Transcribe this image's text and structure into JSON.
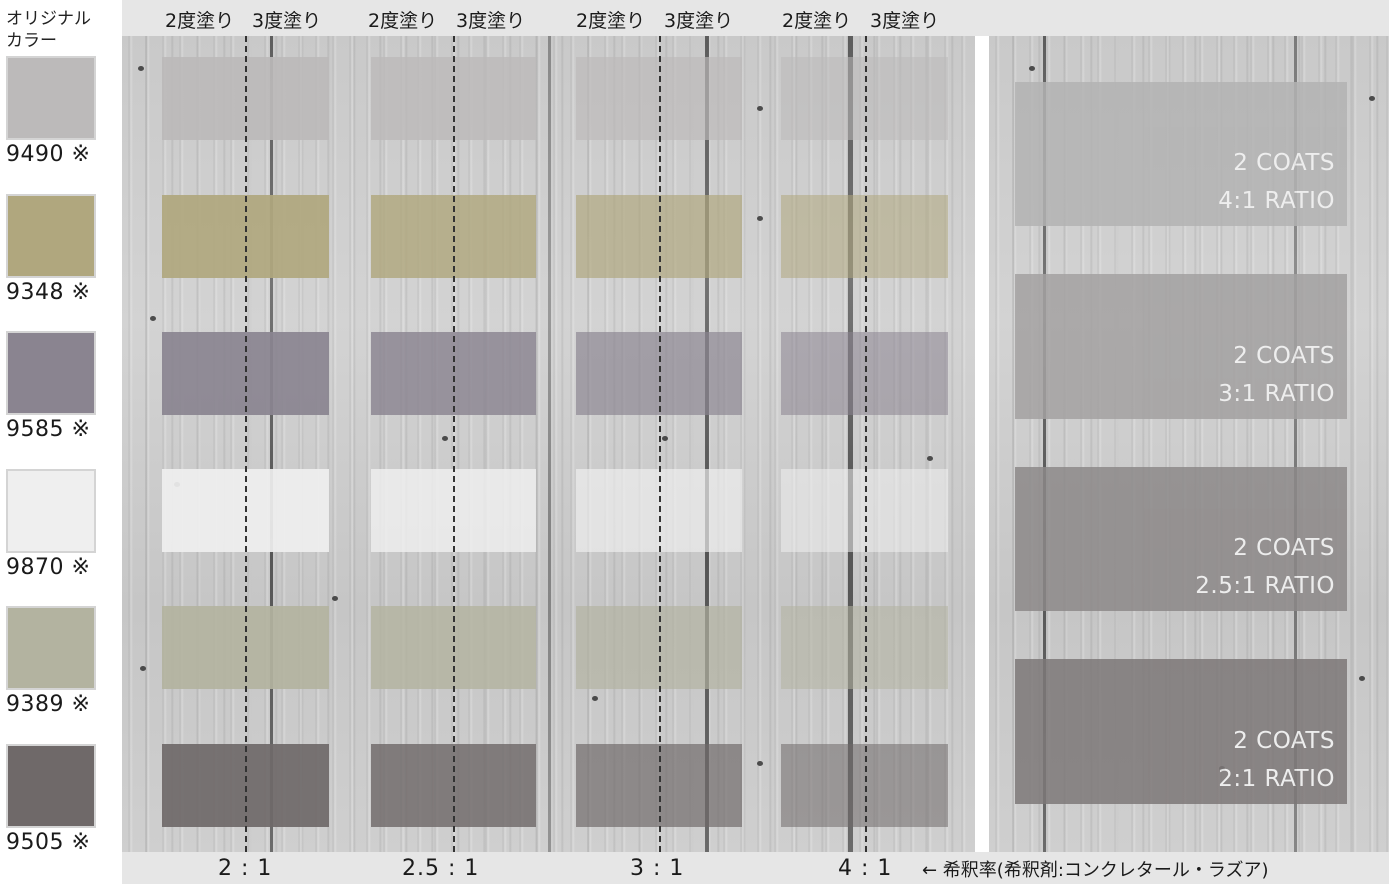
{
  "legend": {
    "title": "オリジナル\nカラー",
    "items": [
      {
        "code": "9490 ※",
        "color": "#bcbaba"
      },
      {
        "code": "9348 ※",
        "color": "#b0a77e"
      },
      {
        "code": "9585 ※",
        "color": "#8a8490"
      },
      {
        "code": "9870 ※",
        "color": "#efefef"
      },
      {
        "code": "9389 ※",
        "color": "#b3b3a0"
      },
      {
        "code": "9505 ※",
        "color": "#6f6969"
      }
    ]
  },
  "header": {
    "groups": [
      {
        "two_coats": "2度塗り",
        "three_coats": "3度塗り"
      },
      {
        "two_coats": "2度塗り",
        "three_coats": "3度塗り"
      },
      {
        "two_coats": "2度塗り",
        "three_coats": "3度塗り"
      },
      {
        "two_coats": "2度塗り",
        "three_coats": "3度塗り"
      }
    ]
  },
  "ratios": [
    "2 : 1",
    "2.5 : 1",
    "3 : 1",
    "4 : 1"
  ],
  "footer_note": "← 希釈率(希釈剤:コンクレタール・ラズア)",
  "side_samples": [
    {
      "coats": "2 COATS",
      "ratio": "4:1 RATIO",
      "color": "#b3b3b3"
    },
    {
      "coats": "2 COATS",
      "ratio": "3:1 RATIO",
      "color": "#a3a1a1"
    },
    {
      "coats": "2 COATS",
      "ratio": "2.5:1 RATIO",
      "color": "#8c8888"
    },
    {
      "coats": "2 COATS",
      "ratio": "2:1 RATIO",
      "color": "#7d7878"
    }
  ]
}
